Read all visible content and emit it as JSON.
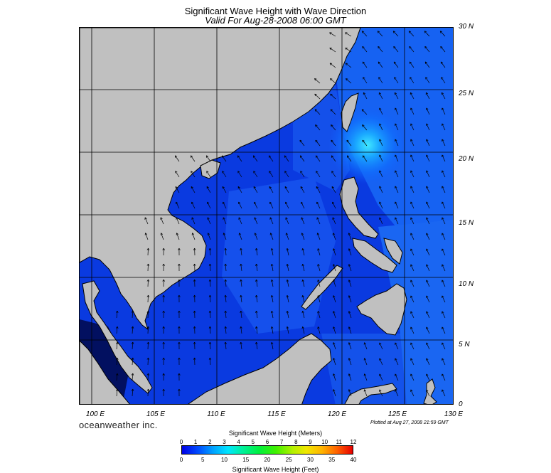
{
  "title": "Significant Wave Height with Wave Direction",
  "subtitle": "Valid For Aug-28-2008 06:00 GMT",
  "map": {
    "region": "South China Sea",
    "lon_range": [
      99,
      130
    ],
    "lat_range": [
      0,
      30
    ],
    "land_color": "#c0c0c0",
    "sea_base_color": "#0a3ae0",
    "grid": true,
    "lat_labels": [
      "30 N",
      "25 N",
      "20 N",
      "15 N",
      "10 N",
      "5 N",
      "0"
    ],
    "lon_labels": [
      "100 E",
      "105 E",
      "110 E",
      "115 E",
      "120 E",
      "125 E",
      "130 E"
    ]
  },
  "brand": "oceanweather inc.",
  "plotted": "Plotted at Aug 27, 2008 21:59 GMT",
  "legend": {
    "top_title": "Significant Wave Height (Meters)",
    "bottom_title": "Significant Wave Height (Feet)",
    "meters_ticks": [
      "0",
      "1",
      "2",
      "3",
      "4",
      "5",
      "6",
      "7",
      "8",
      "9",
      "10",
      "11",
      "12"
    ],
    "feet_ticks": [
      "0",
      "5",
      "10",
      "15",
      "20",
      "25",
      "30",
      "35",
      "40"
    ]
  }
}
